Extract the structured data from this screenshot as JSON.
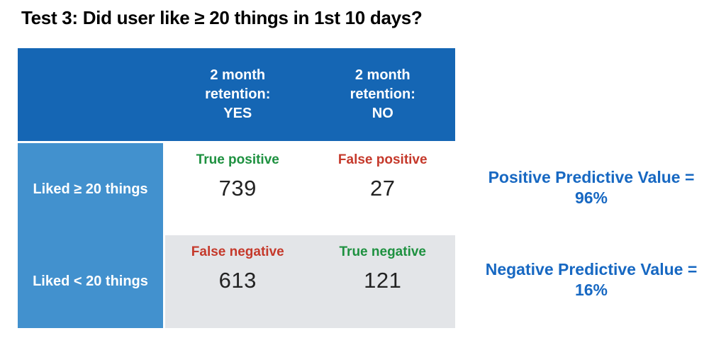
{
  "title": "Test 3: Did user like ≥ 20 things in 1st 10 days?",
  "colors": {
    "header_blue": "#1566B4",
    "row_label_blue": "#4291CE",
    "cell_gray": "#E3E5E8",
    "green": "#1E9140",
    "red": "#C5392B",
    "annotation_blue": "#1768C2",
    "value_text": "#222222"
  },
  "table": {
    "col_headers": [
      "2 month\nretention:\nYES",
      "2 month\nretention:\nNO"
    ],
    "row_headers": [
      "Liked ≥ 20 things",
      "Liked < 20 things"
    ],
    "cells": [
      [
        {
          "label": "True positive",
          "value": "739"
        },
        {
          "label": "False positive",
          "value": "27"
        }
      ],
      [
        {
          "label": "False negative",
          "value": "613"
        },
        {
          "label": "True negative",
          "value": "121"
        }
      ]
    ]
  },
  "annotations": [
    {
      "text": "Positive Predictive Value =\n96%"
    },
    {
      "text": "Negative Predictive Value =\n16%"
    }
  ],
  "chart_data": {
    "type": "table",
    "title": "Test 3: Did user like ≥ 20 things in 1st 10 days?",
    "columns": [
      "",
      "2 month retention: YES",
      "2 month retention: NO"
    ],
    "rows": [
      {
        "label": "Liked ≥ 20 things",
        "cells": [
          {
            "category": "True positive",
            "value": 739
          },
          {
            "category": "False positive",
            "value": 27
          }
        ]
      },
      {
        "label": "Liked < 20 things",
        "cells": [
          {
            "category": "False negative",
            "value": 613
          },
          {
            "category": "True negative",
            "value": 121
          }
        ]
      }
    ],
    "annotations": [
      "Positive Predictive Value = 96%",
      "Negative Predictive Value = 16%"
    ]
  }
}
